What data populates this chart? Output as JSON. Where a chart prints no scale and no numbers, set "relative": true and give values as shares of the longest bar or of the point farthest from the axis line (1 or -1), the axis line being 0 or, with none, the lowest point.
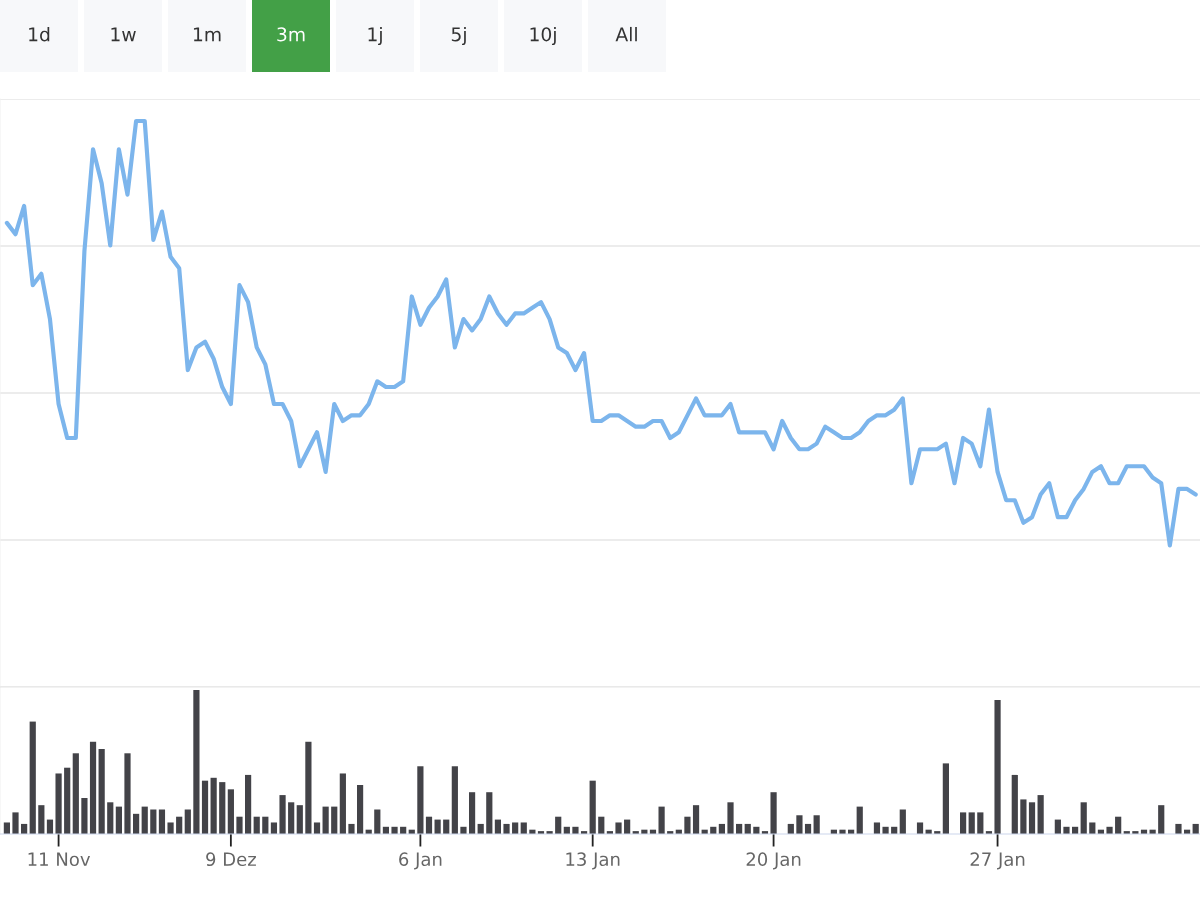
{
  "chart_data": [
    {
      "type": "other",
      "categories": [
        "1d",
        "1w",
        "1m",
        "3m",
        "1j",
        "5j",
        "10j",
        "All"
      ],
      "colors": [
        "#f7f8fa",
        "#f7f8fa",
        "#f7f8fa",
        "#43a047",
        "#f7f8fa",
        "#f7f8fa",
        "#f7f8fa",
        "#f7f8fa"
      ]
    },
    {
      "type": "line",
      "relative": true,
      "grid": "y",
      "categories": [
        null,
        null,
        null,
        null,
        null,
        null,
        null,
        null,
        null,
        null,
        null,
        null,
        null,
        null,
        null,
        null,
        null,
        null,
        null,
        null,
        null,
        null,
        null,
        null,
        null,
        null,
        null,
        null,
        null,
        null,
        null,
        null,
        null,
        null,
        null,
        null,
        null,
        null,
        null,
        null,
        null,
        null,
        null,
        null,
        null,
        null,
        null,
        null,
        null,
        null,
        null,
        null,
        null,
        null,
        null,
        null,
        null,
        null,
        null,
        null,
        null,
        null,
        null,
        null,
        null,
        null,
        null,
        null,
        null,
        null,
        null,
        null,
        null,
        null,
        null,
        null,
        null,
        null,
        null,
        null,
        null,
        null,
        null,
        null,
        null,
        null,
        null,
        null,
        null,
        null,
        null,
        null,
        null,
        null,
        null,
        null,
        null,
        null,
        null,
        null,
        null,
        null,
        null,
        null,
        null,
        null,
        null,
        null,
        null,
        null,
        null,
        null,
        null,
        null,
        null,
        null,
        null,
        null,
        null,
        null,
        null,
        null,
        null,
        null,
        null,
        null,
        null,
        null,
        null,
        null,
        null,
        null,
        null,
        null,
        null,
        null,
        null,
        null,
        null
      ],
      "series": [
        {
          "color": "#7cb5ec",
          "values": [
            0.82,
            0.8,
            0.85,
            0.71,
            0.73,
            0.65,
            0.5,
            0.44,
            0.44,
            0.77,
            0.95,
            0.89,
            0.78,
            0.95,
            0.87,
            1,
            1,
            0.79,
            0.84,
            0.76,
            0.74,
            0.56,
            0.6,
            0.61,
            0.58,
            0.53,
            0.5,
            0.71,
            0.68,
            0.6,
            0.57,
            0.5,
            0.5,
            0.47,
            0.39,
            0.42,
            0.45,
            0.38,
            0.5,
            0.47,
            0.48,
            0.48,
            0.5,
            0.54,
            0.53,
            0.53,
            0.54,
            0.69,
            0.64,
            0.67,
            0.69,
            0.72,
            0.6,
            0.65,
            0.63,
            0.65,
            0.69,
            0.66,
            0.64,
            0.66,
            0.66,
            0.67,
            0.68,
            0.65,
            0.6,
            0.59,
            0.56,
            0.59,
            0.47,
            0.47,
            0.48,
            0.48,
            0.47,
            0.46,
            0.46,
            0.47,
            0.47,
            0.44,
            0.45,
            0.48,
            0.51,
            0.48,
            0.48,
            0.48,
            0.5,
            0.45,
            0.45,
            0.45,
            0.45,
            0.42,
            0.47,
            0.44,
            0.42,
            0.42,
            0.43,
            0.46,
            0.45,
            0.44,
            0.44,
            0.45,
            0.47,
            0.48,
            0.48,
            0.49,
            0.51,
            0.36,
            0.42,
            0.42,
            0.42,
            0.43,
            0.36,
            0.44,
            0.43,
            0.39,
            0.49,
            0.38,
            0.33,
            0.33,
            0.29,
            0.3,
            0.34,
            0.36,
            0.3,
            0.3,
            0.33,
            0.35,
            0.38,
            0.39,
            0.36,
            0.36,
            0.39,
            0.39,
            0.39,
            0.37,
            0.36,
            0.25,
            0.35,
            0.35,
            0.34
          ]
        }
      ]
    },
    {
      "type": "bar",
      "relative": true,
      "tick_labels": "x",
      "categories": [
        null,
        null,
        null,
        null,
        null,
        null,
        "11 Nov",
        null,
        null,
        null,
        null,
        null,
        null,
        null,
        null,
        null,
        null,
        null,
        null,
        null,
        null,
        null,
        null,
        null,
        null,
        null,
        "9 Dez",
        null,
        null,
        null,
        null,
        null,
        null,
        null,
        null,
        null,
        null,
        null,
        null,
        null,
        null,
        null,
        null,
        null,
        null,
        null,
        null,
        null,
        "6 Jan",
        null,
        null,
        null,
        null,
        null,
        null,
        null,
        null,
        null,
        null,
        null,
        null,
        null,
        null,
        null,
        null,
        null,
        null,
        null,
        "13 Jan",
        null,
        null,
        null,
        null,
        null,
        null,
        null,
        null,
        null,
        null,
        null,
        null,
        null,
        null,
        null,
        null,
        null,
        null,
        null,
        null,
        "20 Jan",
        null,
        null,
        null,
        null,
        null,
        null,
        null,
        null,
        null,
        null,
        null,
        null,
        null,
        null,
        null,
        null,
        null,
        null,
        null,
        null,
        null,
        null,
        null,
        null,
        null,
        "27 Jan",
        null,
        null,
        null,
        null,
        null,
        null,
        null,
        null,
        null,
        null,
        null,
        null,
        null,
        null,
        null,
        null,
        null,
        null,
        null,
        null,
        null,
        null,
        null
      ],
      "series": [
        {
          "color": "#434348",
          "values": [
            0.08,
            0.15,
            0.07,
            0.78,
            0.2,
            0.1,
            0.42,
            0.46,
            0.56,
            0.25,
            0.64,
            0.59,
            0.22,
            0.19,
            0.56,
            0.14,
            0.19,
            0.17,
            0.17,
            0.08,
            0.12,
            0.17,
            1,
            0.37,
            0.39,
            0.36,
            0.31,
            0.12,
            0.41,
            0.12,
            0.12,
            0.08,
            0.27,
            0.22,
            0.2,
            0.64,
            0.08,
            0.19,
            0.19,
            0.42,
            0.07,
            0.34,
            0.03,
            0.17,
            0.05,
            0.05,
            0.05,
            0.03,
            0.47,
            0.12,
            0.1,
            0.1,
            0.47,
            0.05,
            0.29,
            0.07,
            0.29,
            0.1,
            0.07,
            0.08,
            0.08,
            0.03,
            0.02,
            0.02,
            0.12,
            0.05,
            0.05,
            0.02,
            0.37,
            0.12,
            0.02,
            0.08,
            0.1,
            0.02,
            0.03,
            0.03,
            0.19,
            0.02,
            0.03,
            0.12,
            0.2,
            0.03,
            0.05,
            0.07,
            0.22,
            0.07,
            0.07,
            0.05,
            0.02,
            0.29,
            null,
            0.07,
            0.13,
            0.07,
            0.13,
            null,
            0.03,
            0.03,
            0.03,
            0.19,
            null,
            0.08,
            0.05,
            0.05,
            0.17,
            null,
            0.08,
            0.03,
            0.02,
            0.49,
            null,
            0.15,
            0.15,
            0.15,
            0.02,
            0.93,
            null,
            0.41,
            0.24,
            0.22,
            0.27,
            null,
            0.1,
            0.05,
            0.05,
            0.22,
            0.08,
            0.03,
            0.05,
            0.12,
            0.02,
            0.02,
            0.03,
            0.03,
            0.2,
            null,
            0.07,
            0.03,
            0.07
          ]
        }
      ]
    }
  ]
}
